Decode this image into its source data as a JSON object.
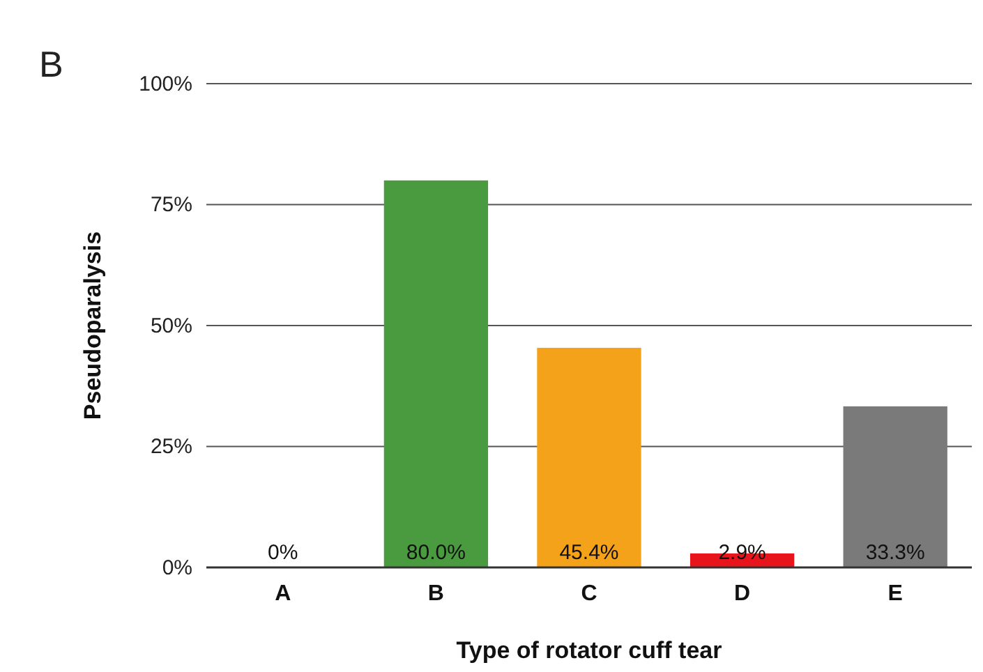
{
  "chart_data": {
    "type": "bar",
    "title": "B",
    "xlabel": "Type of rotator cuff tear",
    "ylabel": "Pseudoparalysis",
    "categories": [
      "A",
      "B",
      "C",
      "D",
      "E"
    ],
    "values": [
      0,
      80.0,
      45.4,
      2.9,
      33.3
    ],
    "colors": [
      "#4a9a3f",
      "#4a9a3f",
      "#f5a21b",
      "#e8141b",
      "#7a7a7a"
    ],
    "value_labels": [
      "0%",
      "80.0%",
      "45.4%",
      "2.9%",
      "33.3%"
    ],
    "ylim": [
      0,
      100
    ],
    "yticks": [
      {
        "value": 0,
        "label": "0%"
      },
      {
        "value": 25,
        "label": "25%"
      },
      {
        "value": 50,
        "label": "50%"
      },
      {
        "value": 75,
        "label": "75%"
      },
      {
        "value": 100,
        "label": "100%"
      }
    ],
    "grid": "y"
  }
}
